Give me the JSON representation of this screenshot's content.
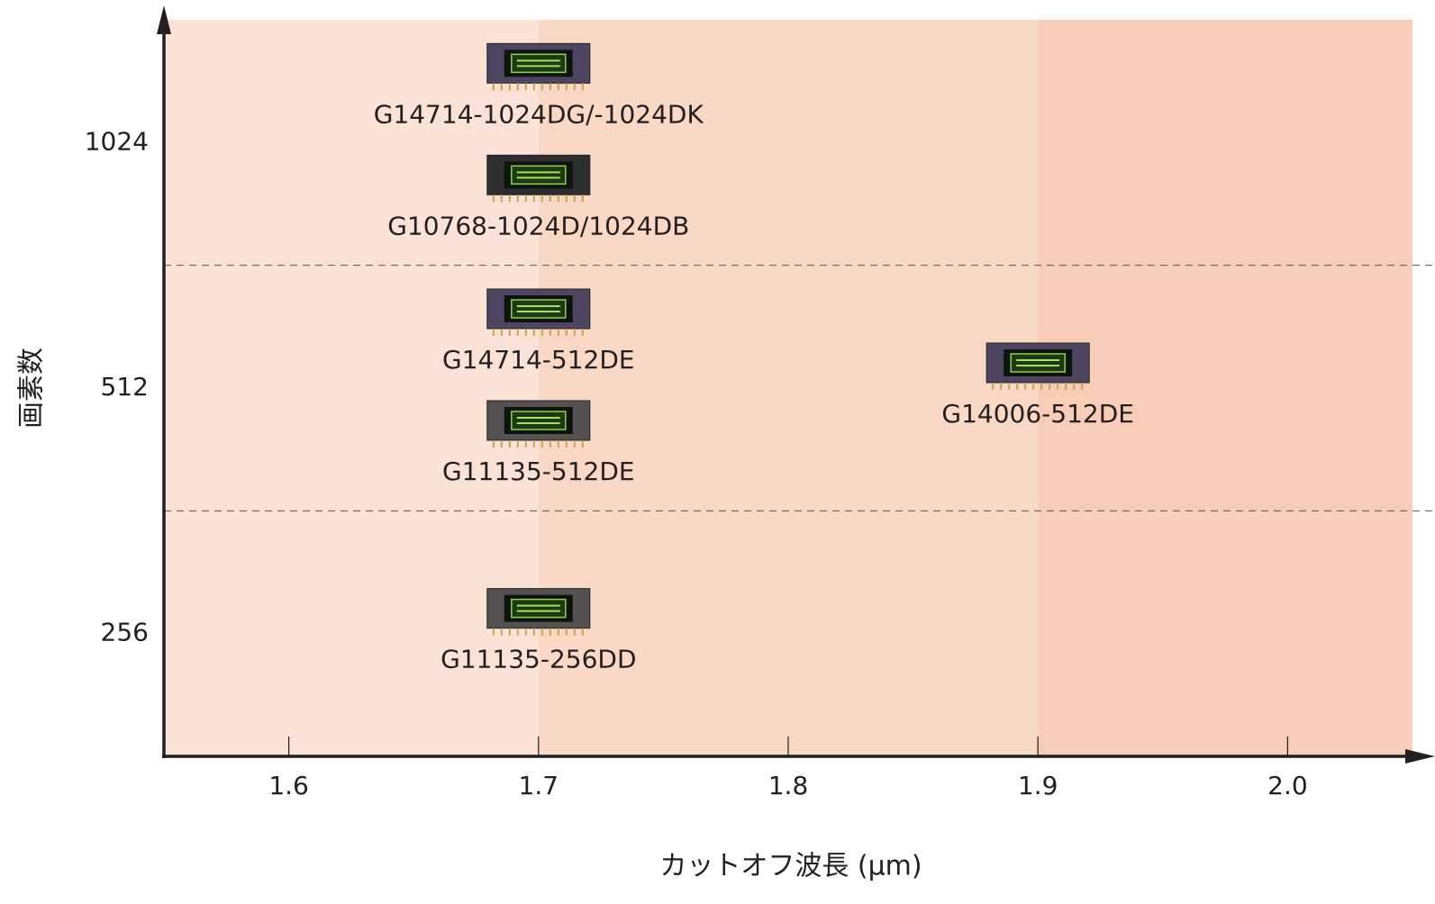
{
  "chart_data": {
    "type": "scatter",
    "x_label": "カットオフ波長 (μm)",
    "y_label": "画素数",
    "xlim": [
      1.55,
      2.05
    ],
    "xticks": [
      1.6,
      1.7,
      1.8,
      1.9,
      {
        "value": 2,
        "label": "2.0"
      }
    ],
    "yticks": [
      256,
      512,
      1024
    ],
    "bands": [
      {
        "from": 1.55,
        "to": 1.7,
        "color": "#fbe2d7"
      },
      {
        "from": 1.7,
        "to": 1.9,
        "color": "#f9d8c6"
      },
      {
        "from": 1.9,
        "to": 2.05,
        "color": "#f7cdb7"
      }
    ],
    "points": [
      {
        "label": "G14714-1024DG/-1024DK",
        "x": 1.7,
        "y": 1024,
        "color": "#4e4563"
      },
      {
        "label": "G10768-1024D/1024DB",
        "x": 1.7,
        "y": 1024,
        "color": "#2e2e30"
      },
      {
        "label": "G14714-512DE",
        "x": 1.7,
        "y": 512,
        "color": "#4e4563"
      },
      {
        "label": "G11135-512DE",
        "x": 1.7,
        "y": 512,
        "color": "#555052"
      },
      {
        "label": "G14006-512DE",
        "x": 1.9,
        "y": 512,
        "color": "#4e4563"
      },
      {
        "label": "G11135-256DD",
        "x": 1.7,
        "y": 256,
        "color": "#555052"
      }
    ]
  }
}
